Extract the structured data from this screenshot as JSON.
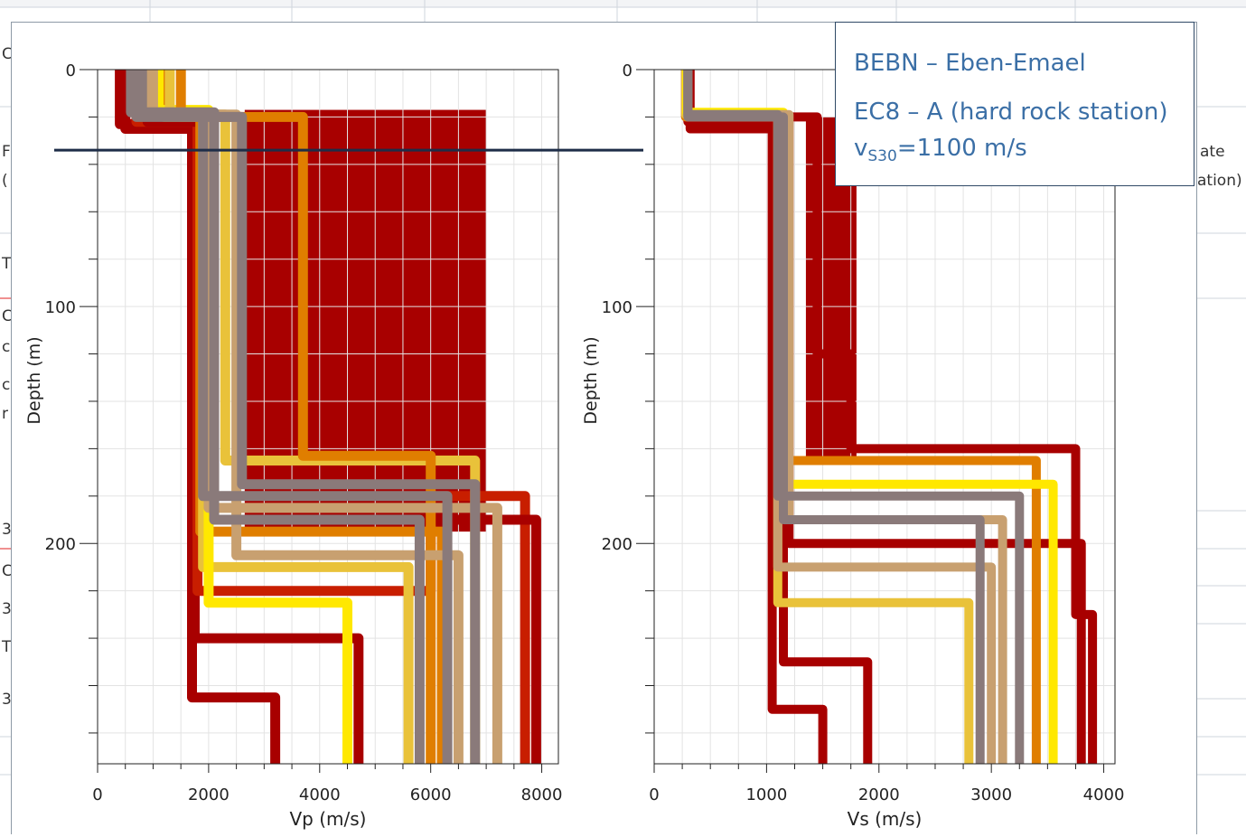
{
  "background_fragments": [
    {
      "text": "C"
    },
    {
      "text": "F"
    },
    {
      "text": "("
    },
    {
      "text": "T"
    },
    {
      "text": "C"
    },
    {
      "text": "c"
    },
    {
      "text": "c"
    },
    {
      "text": "r"
    },
    {
      "text": "3"
    },
    {
      "text": "C"
    },
    {
      "text": "3"
    },
    {
      "text": "T"
    },
    {
      "text": "3"
    },
    {
      "text": "ate"
    },
    {
      "text": "ation)"
    }
  ],
  "legend": {
    "site": "BEBN – Eben-Emael",
    "class": "EC8 – A (hard rock station)",
    "vs30_prefix": "v",
    "vs30_sub": "S30",
    "vs30_value": "=1100 m/s"
  },
  "colors": {
    "dark_red": "#a80000",
    "red": "#c81e00",
    "orange": "#e07e00",
    "gold": "#e9c23a",
    "yellow": "#ffe800",
    "tan": "#c8a070",
    "grey": "#8a7a7a",
    "reference_line": "#1e2d48",
    "legend_text": "#3b6fa6"
  },
  "chart_data": [
    {
      "type": "line",
      "title": "",
      "xlabel": "Vp (m/s)",
      "ylabel": "Depth (m)",
      "xlim": [
        0,
        8300
      ],
      "ylim": [
        0,
        293
      ],
      "y_inverted": true,
      "x_ticks": [
        0,
        2000,
        4000,
        6000,
        8000
      ],
      "y_ticks": [
        0,
        100,
        200
      ],
      "grid": true,
      "reference_depth": 34,
      "band": {
        "x": [
          2650,
          7000
        ],
        "y": [
          17,
          195
        ],
        "color": "dark_red"
      },
      "series": [
        {
          "color": "dark_red",
          "points": [
            [
              500,
              0
            ],
            [
              500,
              25
            ],
            [
              1700,
              25
            ],
            [
              1700,
              265
            ],
            [
              3200,
              265
            ],
            [
              3200,
              293
            ]
          ]
        },
        {
          "color": "dark_red",
          "points": [
            [
              400,
              0
            ],
            [
              400,
              23
            ],
            [
              1750,
              23
            ],
            [
              1750,
              240
            ],
            [
              4700,
              240
            ],
            [
              4700,
              293
            ]
          ]
        },
        {
          "color": "red",
          "points": [
            [
              700,
              0
            ],
            [
              700,
              22
            ],
            [
              1800,
              22
            ],
            [
              1800,
              220
            ],
            [
              6000,
              220
            ],
            [
              6000,
              180
            ],
            [
              7700,
              180
            ],
            [
              7700,
              293
            ]
          ]
        },
        {
          "color": "dark_red",
          "points": [
            [
              900,
              0
            ],
            [
              900,
              22
            ],
            [
              1900,
              22
            ],
            [
              1900,
              190
            ],
            [
              7900,
              190
            ],
            [
              7900,
              293
            ]
          ]
        },
        {
          "color": "orange",
          "points": [
            [
              1200,
              0
            ],
            [
              1200,
              20
            ],
            [
              1850,
              20
            ],
            [
              1850,
              195
            ],
            [
              6200,
              195
            ],
            [
              6200,
              293
            ]
          ]
        },
        {
          "color": "gold",
          "points": [
            [
              800,
              0
            ],
            [
              800,
              18
            ],
            [
              1900,
              18
            ],
            [
              1900,
              210
            ],
            [
              5600,
              210
            ],
            [
              5600,
              293
            ]
          ]
        },
        {
          "color": "yellow",
          "points": [
            [
              1100,
              0
            ],
            [
              1100,
              17
            ],
            [
              2000,
              17
            ],
            [
              2000,
              225
            ],
            [
              4500,
              225
            ],
            [
              4500,
              293
            ]
          ]
        },
        {
          "color": "gold",
          "points": [
            [
              1300,
              0
            ],
            [
              1300,
              19
            ],
            [
              2300,
              19
            ],
            [
              2300,
              165
            ],
            [
              6800,
              165
            ],
            [
              6800,
              293
            ]
          ]
        },
        {
          "color": "orange",
          "points": [
            [
              1500,
              0
            ],
            [
              1500,
              20
            ],
            [
              3700,
              20
            ],
            [
              3700,
              163
            ],
            [
              6000,
              163
            ],
            [
              6000,
              293
            ]
          ]
        },
        {
          "color": "tan",
          "points": [
            [
              900,
              0
            ],
            [
              900,
              18
            ],
            [
              2000,
              18
            ],
            [
              2000,
              185
            ],
            [
              7200,
              185
            ],
            [
              7200,
              293
            ]
          ]
        },
        {
          "color": "tan",
          "points": [
            [
              1000,
              0
            ],
            [
              1000,
              19
            ],
            [
              2500,
              19
            ],
            [
              2500,
              205
            ],
            [
              6500,
              205
            ],
            [
              6500,
              293
            ]
          ]
        },
        {
          "color": "grey",
          "points": [
            [
              800,
              0
            ],
            [
              800,
              19
            ],
            [
              1900,
              19
            ],
            [
              1900,
              180
            ],
            [
              6300,
              180
            ],
            [
              6300,
              293
            ]
          ]
        },
        {
          "color": "grey",
          "points": [
            [
              600,
              0
            ],
            [
              600,
              18
            ],
            [
              2100,
              18
            ],
            [
              2100,
              190
            ],
            [
              5800,
              190
            ],
            [
              5800,
              293
            ]
          ]
        },
        {
          "color": "grey",
          "points": [
            [
              700,
              0
            ],
            [
              700,
              20
            ],
            [
              2600,
              20
            ],
            [
              2600,
              175
            ],
            [
              6800,
              175
            ],
            [
              6800,
              293
            ]
          ]
        }
      ]
    },
    {
      "type": "line",
      "title": "",
      "xlabel": "Vs (m/s)",
      "ylabel": "Depth (m)",
      "xlim": [
        0,
        4100
      ],
      "ylim": [
        0,
        293
      ],
      "y_inverted": true,
      "x_ticks": [
        0,
        1000,
        2000,
        3000,
        4000
      ],
      "y_ticks": [
        0,
        100,
        200
      ],
      "grid": true,
      "reference_depth": 34,
      "band": {
        "x": [
          1350,
          1800
        ],
        "y": [
          20,
          165
        ],
        "color": "dark_red"
      },
      "series": [
        {
          "color": "dark_red",
          "points": [
            [
              320,
              0
            ],
            [
              320,
              25
            ],
            [
              1050,
              25
            ],
            [
              1050,
              270
            ],
            [
              1500,
              270
            ],
            [
              1500,
              293
            ]
          ]
        },
        {
          "color": "dark_red",
          "points": [
            [
              300,
              0
            ],
            [
              300,
              22
            ],
            [
              1150,
              22
            ],
            [
              1150,
              250
            ],
            [
              1900,
              250
            ],
            [
              1900,
              293
            ]
          ]
        },
        {
          "color": "dark_red",
          "points": [
            [
              300,
              0
            ],
            [
              300,
              20
            ],
            [
              1450,
              20
            ],
            [
              1450,
              120
            ],
            [
              1750,
              120
            ],
            [
              1750,
              160
            ],
            [
              3750,
              160
            ],
            [
              3750,
              230
            ],
            [
              3900,
              230
            ],
            [
              3900,
              293
            ]
          ]
        },
        {
          "color": "dark_red",
          "points": [
            [
              280,
              0
            ],
            [
              280,
              20
            ],
            [
              1200,
              20
            ],
            [
              1200,
              200
            ],
            [
              3800,
              200
            ],
            [
              3800,
              293
            ]
          ]
        },
        {
          "color": "orange",
          "points": [
            [
              280,
              0
            ],
            [
              280,
              20
            ],
            [
              1150,
              20
            ],
            [
              1150,
              165
            ],
            [
              3400,
              165
            ],
            [
              3400,
              293
            ]
          ]
        },
        {
          "color": "gold",
          "points": [
            [
              280,
              0
            ],
            [
              280,
              19
            ],
            [
              1100,
              19
            ],
            [
              1100,
              225
            ],
            [
              2800,
              225
            ],
            [
              2800,
              293
            ]
          ]
        },
        {
          "color": "yellow",
          "points": [
            [
              290,
              0
            ],
            [
              290,
              18
            ],
            [
              1150,
              18
            ],
            [
              1150,
              175
            ],
            [
              3550,
              175
            ],
            [
              3550,
              293
            ]
          ]
        },
        {
          "color": "tan",
          "points": [
            [
              300,
              0
            ],
            [
              300,
              19
            ],
            [
              1200,
              19
            ],
            [
              1200,
              190
            ],
            [
              3100,
              190
            ],
            [
              3100,
              293
            ]
          ]
        },
        {
          "color": "tan",
          "points": [
            [
              300,
              0
            ],
            [
              300,
              20
            ],
            [
              1100,
              20
            ],
            [
              1100,
              210
            ],
            [
              3000,
              210
            ],
            [
              3000,
              293
            ]
          ]
        },
        {
          "color": "grey",
          "points": [
            [
              300,
              0
            ],
            [
              300,
              19
            ],
            [
              1100,
              19
            ],
            [
              1100,
              180
            ],
            [
              3250,
              180
            ],
            [
              3250,
              293
            ]
          ]
        },
        {
          "color": "grey",
          "points": [
            [
              300,
              0
            ],
            [
              300,
              20
            ],
            [
              1150,
              20
            ],
            [
              1150,
              190
            ],
            [
              2900,
              190
            ],
            [
              2900,
              293
            ]
          ]
        }
      ]
    }
  ]
}
